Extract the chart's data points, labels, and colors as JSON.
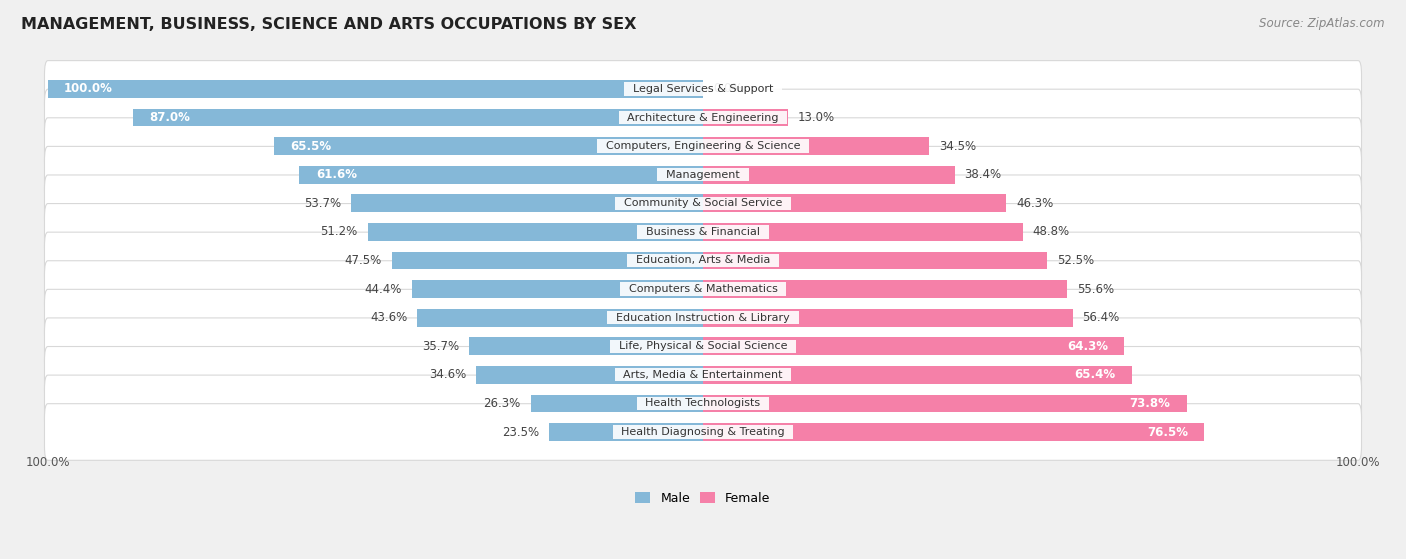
{
  "title": "MANAGEMENT, BUSINESS, SCIENCE AND ARTS OCCUPATIONS BY SEX",
  "source": "Source: ZipAtlas.com",
  "categories": [
    "Legal Services & Support",
    "Architecture & Engineering",
    "Computers, Engineering & Science",
    "Management",
    "Community & Social Service",
    "Business & Financial",
    "Education, Arts & Media",
    "Computers & Mathematics",
    "Education Instruction & Library",
    "Life, Physical & Social Science",
    "Arts, Media & Entertainment",
    "Health Technologists",
    "Health Diagnosing & Treating"
  ],
  "male_pct": [
    100.0,
    87.0,
    65.5,
    61.6,
    53.7,
    51.2,
    47.5,
    44.4,
    43.6,
    35.7,
    34.6,
    26.3,
    23.5
  ],
  "female_pct": [
    0.0,
    13.0,
    34.5,
    38.4,
    46.3,
    48.8,
    52.5,
    55.6,
    56.4,
    64.3,
    65.4,
    73.8,
    76.5
  ],
  "male_color": "#85b8d8",
  "female_color": "#f580a8",
  "bg_color": "#f0f0f0",
  "row_bg_even": "#f8f8f8",
  "row_bg_odd": "#ffffff",
  "title_fontsize": 11.5,
  "source_fontsize": 8.5,
  "bar_label_fontsize": 8.5,
  "category_fontsize": 8.0,
  "legend_fontsize": 9,
  "bar_height": 0.62,
  "axis_label_100": "100.0%"
}
